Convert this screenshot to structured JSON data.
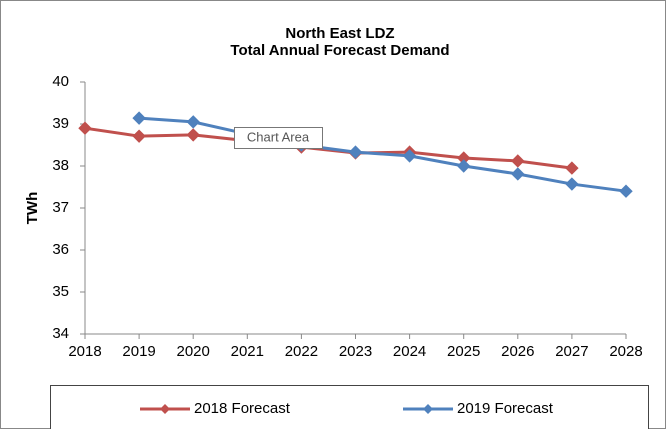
{
  "chart_data": {
    "type": "line",
    "title": "North East LDZ",
    "subtitle": "Total Annual Forecast Demand",
    "y_label": "TWh",
    "categories": [
      "2018",
      "2019",
      "2020",
      "2021",
      "2022",
      "2023",
      "2024",
      "2025",
      "2026",
      "2027",
      "2028"
    ],
    "series": [
      {
        "name": "2018 Forecast",
        "color": "#c0504d",
        "values": [
          38.9,
          38.71,
          38.74,
          38.6,
          38.45,
          38.31,
          38.33,
          38.19,
          38.12,
          37.95,
          null
        ]
      },
      {
        "name": "2019 Forecast",
        "color": "#4f81bd",
        "values": [
          null,
          39.14,
          39.05,
          38.76,
          38.5,
          38.33,
          38.24,
          38.0,
          37.81,
          37.57,
          37.4
        ]
      }
    ],
    "ylim": [
      34,
      40
    ],
    "yticks": [
      34,
      35,
      36,
      37,
      38,
      39,
      40
    ],
    "grid": false,
    "legend": "bottom",
    "tooltip": "Chart Area"
  }
}
